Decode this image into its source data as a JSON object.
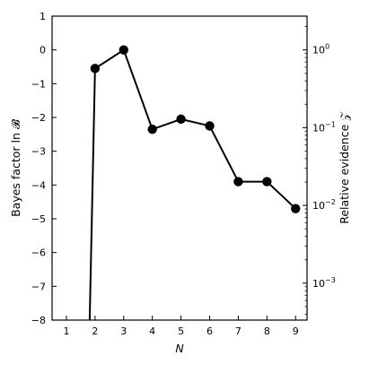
{
  "chart_data": {
    "type": "line",
    "xlabel": "N",
    "ylabel_left": "Bayes factor ln 𝓑",
    "ylabel_right": "Relative evidence 𝒵",
    "xlim": [
      0.5,
      9.4
    ],
    "ylim": [
      -8,
      1
    ],
    "x_ticks": [
      1,
      2,
      3,
      4,
      5,
      6,
      7,
      8,
      9
    ],
    "y_ticks_left": [
      1,
      0,
      -1,
      -2,
      -3,
      -4,
      -5,
      -6,
      -7,
      -8
    ],
    "y_tick_labels_left": [
      "1",
      "0",
      "−1",
      "−2",
      "−3",
      "−4",
      "−5",
      "−6",
      "−7",
      "−8"
    ],
    "right_axis": {
      "scale": "log",
      "range": [
        0.000335,
        2.718
      ],
      "ticks": [
        {
          "base": "10",
          "exp": "0",
          "value": 1
        },
        {
          "base": "10",
          "exp": "−1",
          "value": 0.1
        },
        {
          "base": "10",
          "exp": "−2",
          "value": 0.01
        },
        {
          "base": "10",
          "exp": "−3",
          "value": 0.001
        }
      ]
    },
    "grid": false,
    "series": [
      {
        "color": "#000000",
        "points": [
          {
            "x": 2,
            "y": -0.55,
            "err": 0.12
          },
          {
            "x": 3,
            "y": 0.0,
            "err": 0.13
          },
          {
            "x": 4,
            "y": -2.35,
            "err": 0.13
          },
          {
            "x": 5,
            "y": -2.05,
            "err": 0.13
          },
          {
            "x": 6,
            "y": -2.25,
            "err": 0.13
          },
          {
            "x": 7,
            "y": -3.9,
            "err": 0.13
          },
          {
            "x": 8,
            "y": -3.9,
            "err": 0.13
          },
          {
            "x": 9,
            "y": -4.7,
            "err": 0.13
          }
        ],
        "line_from_below": {
          "x": 1.8,
          "y": -8.5
        }
      }
    ]
  }
}
